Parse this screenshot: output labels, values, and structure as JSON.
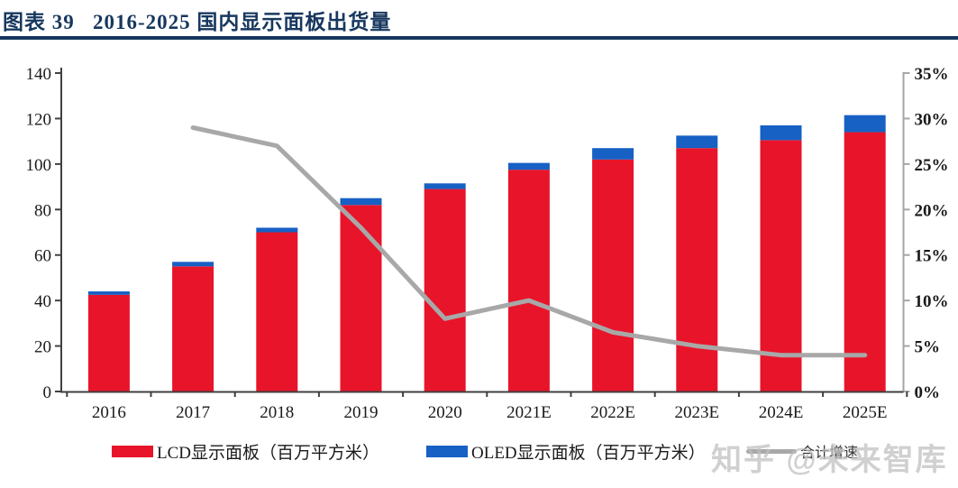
{
  "header": {
    "title": "图表 39   2016-2025 国内显示面板出货量"
  },
  "legend": {
    "items": [
      {
        "label": "LCD显示面板（百万平方米）",
        "swatch": "bar"
      },
      {
        "label": "OLED显示面板（百万平方米）",
        "swatch": "bar"
      },
      {
        "label": "合计增速",
        "swatch": "line"
      }
    ]
  },
  "watermark": {
    "text": "知乎 @未来智库"
  },
  "chart_data": {
    "type": "bar",
    "subtype": "stacked-bars-with-line-overlay",
    "title": "图表 39 2016-2025 国内显示面板出货量",
    "categories": [
      "2016",
      "2017",
      "2018",
      "2019",
      "2020",
      "2021E",
      "2022E",
      "2023E",
      "2024E",
      "2025E"
    ],
    "series": [
      {
        "name": "LCD显示面板（百万平方米）",
        "type": "bar",
        "stack": true,
        "axis": "left",
        "color": "#e8142a",
        "values": [
          42.5,
          55,
          70,
          82,
          89,
          97.5,
          102,
          107,
          110.5,
          114
        ]
      },
      {
        "name": "OLED显示面板（百万平方米）",
        "type": "bar",
        "stack": true,
        "axis": "left",
        "color": "#1760c4",
        "values": [
          1.5,
          2,
          2,
          3,
          2.5,
          3,
          5,
          5.5,
          6.5,
          7.5
        ]
      },
      {
        "name": "合计增速",
        "type": "line",
        "axis": "right",
        "color": "#a8a8a8",
        "values_pct": [
          null,
          29,
          27,
          18,
          8,
          10,
          6.5,
          5,
          4,
          4
        ]
      }
    ],
    "left_axis": {
      "min": 0,
      "max": 140,
      "step": 20,
      "ticks": [
        0,
        20,
        40,
        60,
        80,
        100,
        120,
        140
      ]
    },
    "right_axis": {
      "min": 0,
      "max": 35,
      "step": 5,
      "tick_labels": [
        "0%",
        "5%",
        "10%",
        "15%",
        "20%",
        "25%",
        "30%",
        "35%"
      ]
    },
    "grid": false,
    "legend_position": "bottom",
    "colors": {
      "title_navy": "#17375e",
      "axis_dark": "#404040",
      "axis_gray": "#a6a6a6",
      "label_black": "#1a1a1a",
      "watermark_gray": "#bfbfbf"
    }
  }
}
